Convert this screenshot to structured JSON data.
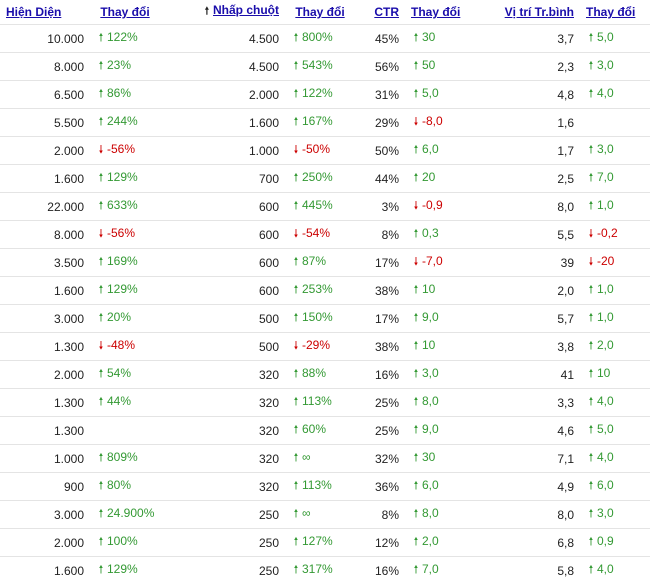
{
  "headers": {
    "impressions": "Hiện Diện",
    "impressions_change": "Thay đổi",
    "clicks": "Nhấp chuột",
    "clicks_change": "Thay đổi",
    "ctr": "CTR",
    "ctr_change": "Thay đổi",
    "position": "Vị trí Tr.bình",
    "position_change": "Thay đổi"
  },
  "sort_icon": "sort-ascending-arrow-icon",
  "colors": {
    "link": "#1a0dab",
    "up": "#339933",
    "down": "#cc0000"
  },
  "rows": [
    {
      "impressions": "10.000",
      "impressions_change": {
        "dir": "up",
        "value": "122%"
      },
      "clicks": "4.500",
      "clicks_change": {
        "dir": "up",
        "value": "800%"
      },
      "ctr": "45%",
      "ctr_change": {
        "dir": "up",
        "value": "30"
      },
      "position": "3,7",
      "position_change": {
        "dir": "up",
        "value": "5,0"
      }
    },
    {
      "impressions": "8.000",
      "impressions_change": {
        "dir": "up",
        "value": "23%"
      },
      "clicks": "4.500",
      "clicks_change": {
        "dir": "up",
        "value": "543%"
      },
      "ctr": "56%",
      "ctr_change": {
        "dir": "up",
        "value": "50"
      },
      "position": "2,3",
      "position_change": {
        "dir": "up",
        "value": "3,0"
      }
    },
    {
      "impressions": "6.500",
      "impressions_change": {
        "dir": "up",
        "value": "86%"
      },
      "clicks": "2.000",
      "clicks_change": {
        "dir": "up",
        "value": "122%"
      },
      "ctr": "31%",
      "ctr_change": {
        "dir": "up",
        "value": "5,0"
      },
      "position": "4,8",
      "position_change": {
        "dir": "up",
        "value": "4,0"
      }
    },
    {
      "impressions": "5.500",
      "impressions_change": {
        "dir": "up",
        "value": "244%"
      },
      "clicks": "1.600",
      "clicks_change": {
        "dir": "up",
        "value": "167%"
      },
      "ctr": "29%",
      "ctr_change": {
        "dir": "down",
        "value": "-8,0"
      },
      "position": "1,6",
      "position_change": null
    },
    {
      "impressions": "2.000",
      "impressions_change": {
        "dir": "down",
        "value": "-56%"
      },
      "clicks": "1.000",
      "clicks_change": {
        "dir": "down",
        "value": "-50%"
      },
      "ctr": "50%",
      "ctr_change": {
        "dir": "up",
        "value": "6,0"
      },
      "position": "1,7",
      "position_change": {
        "dir": "up",
        "value": "3,0"
      }
    },
    {
      "impressions": "1.600",
      "impressions_change": {
        "dir": "up",
        "value": "129%"
      },
      "clicks": "700",
      "clicks_change": {
        "dir": "up",
        "value": "250%"
      },
      "ctr": "44%",
      "ctr_change": {
        "dir": "up",
        "value": "20"
      },
      "position": "2,5",
      "position_change": {
        "dir": "up",
        "value": "7,0"
      }
    },
    {
      "impressions": "22.000",
      "impressions_change": {
        "dir": "up",
        "value": "633%"
      },
      "clicks": "600",
      "clicks_change": {
        "dir": "up",
        "value": "445%"
      },
      "ctr": "3%",
      "ctr_change": {
        "dir": "down",
        "value": "-0,9"
      },
      "position": "8,0",
      "position_change": {
        "dir": "up",
        "value": "1,0"
      }
    },
    {
      "impressions": "8.000",
      "impressions_change": {
        "dir": "down",
        "value": "-56%"
      },
      "clicks": "600",
      "clicks_change": {
        "dir": "down",
        "value": "-54%"
      },
      "ctr": "8%",
      "ctr_change": {
        "dir": "up",
        "value": "0,3"
      },
      "position": "5,5",
      "position_change": {
        "dir": "down",
        "value": "-0,2"
      }
    },
    {
      "impressions": "3.500",
      "impressions_change": {
        "dir": "up",
        "value": "169%"
      },
      "clicks": "600",
      "clicks_change": {
        "dir": "up",
        "value": "87%"
      },
      "ctr": "17%",
      "ctr_change": {
        "dir": "down",
        "value": "-7,0"
      },
      "position": "39",
      "position_change": {
        "dir": "down",
        "value": "-20"
      }
    },
    {
      "impressions": "1.600",
      "impressions_change": {
        "dir": "up",
        "value": "129%"
      },
      "clicks": "600",
      "clicks_change": {
        "dir": "up",
        "value": "253%"
      },
      "ctr": "38%",
      "ctr_change": {
        "dir": "up",
        "value": "10"
      },
      "position": "2,0",
      "position_change": {
        "dir": "up",
        "value": "1,0"
      }
    },
    {
      "impressions": "3.000",
      "impressions_change": {
        "dir": "up",
        "value": "20%"
      },
      "clicks": "500",
      "clicks_change": {
        "dir": "up",
        "value": "150%"
      },
      "ctr": "17%",
      "ctr_change": {
        "dir": "up",
        "value": "9,0"
      },
      "position": "5,7",
      "position_change": {
        "dir": "up",
        "value": "1,0"
      }
    },
    {
      "impressions": "1.300",
      "impressions_change": {
        "dir": "down",
        "value": "-48%"
      },
      "clicks": "500",
      "clicks_change": {
        "dir": "down",
        "value": "-29%"
      },
      "ctr": "38%",
      "ctr_change": {
        "dir": "up",
        "value": "10"
      },
      "position": "3,8",
      "position_change": {
        "dir": "up",
        "value": "2,0"
      }
    },
    {
      "impressions": "2.000",
      "impressions_change": {
        "dir": "up",
        "value": "54%"
      },
      "clicks": "320",
      "clicks_change": {
        "dir": "up",
        "value": "88%"
      },
      "ctr": "16%",
      "ctr_change": {
        "dir": "up",
        "value": "3,0"
      },
      "position": "41",
      "position_change": {
        "dir": "up",
        "value": "10"
      }
    },
    {
      "impressions": "1.300",
      "impressions_change": {
        "dir": "up",
        "value": "44%"
      },
      "clicks": "320",
      "clicks_change": {
        "dir": "up",
        "value": "113%"
      },
      "ctr": "25%",
      "ctr_change": {
        "dir": "up",
        "value": "8,0"
      },
      "position": "3,3",
      "position_change": {
        "dir": "up",
        "value": "4,0"
      }
    },
    {
      "impressions": "1.300",
      "impressions_change": null,
      "clicks": "320",
      "clicks_change": {
        "dir": "up",
        "value": "60%"
      },
      "ctr": "25%",
      "ctr_change": {
        "dir": "up",
        "value": "9,0"
      },
      "position": "4,6",
      "position_change": {
        "dir": "up",
        "value": "5,0"
      }
    },
    {
      "impressions": "1.000",
      "impressions_change": {
        "dir": "up",
        "value": "809%"
      },
      "clicks": "320",
      "clicks_change": {
        "dir": "up",
        "value": "∞"
      },
      "ctr": "32%",
      "ctr_change": {
        "dir": "up",
        "value": "30"
      },
      "position": "7,1",
      "position_change": {
        "dir": "up",
        "value": "4,0"
      }
    },
    {
      "impressions": "900",
      "impressions_change": {
        "dir": "up",
        "value": "80%"
      },
      "clicks": "320",
      "clicks_change": {
        "dir": "up",
        "value": "113%"
      },
      "ctr": "36%",
      "ctr_change": {
        "dir": "up",
        "value": "6,0"
      },
      "position": "4,9",
      "position_change": {
        "dir": "up",
        "value": "6,0"
      }
    },
    {
      "impressions": "3.000",
      "impressions_change": {
        "dir": "up",
        "value": "24.900%"
      },
      "clicks": "250",
      "clicks_change": {
        "dir": "up",
        "value": "∞"
      },
      "ctr": "8%",
      "ctr_change": {
        "dir": "up",
        "value": "8,0"
      },
      "position": "8,0",
      "position_change": {
        "dir": "up",
        "value": "3,0"
      }
    },
    {
      "impressions": "2.000",
      "impressions_change": {
        "dir": "up",
        "value": "100%"
      },
      "clicks": "250",
      "clicks_change": {
        "dir": "up",
        "value": "127%"
      },
      "ctr": "12%",
      "ctr_change": {
        "dir": "up",
        "value": "2,0"
      },
      "position": "6,8",
      "position_change": {
        "dir": "up",
        "value": "0,9"
      }
    },
    {
      "impressions": "1.600",
      "impressions_change": {
        "dir": "up",
        "value": "129%"
      },
      "clicks": "250",
      "clicks_change": {
        "dir": "up",
        "value": "317%"
      },
      "ctr": "16%",
      "ctr_change": {
        "dir": "up",
        "value": "7,0"
      },
      "position": "5,8",
      "position_change": {
        "dir": "up",
        "value": "4,0"
      }
    }
  ]
}
